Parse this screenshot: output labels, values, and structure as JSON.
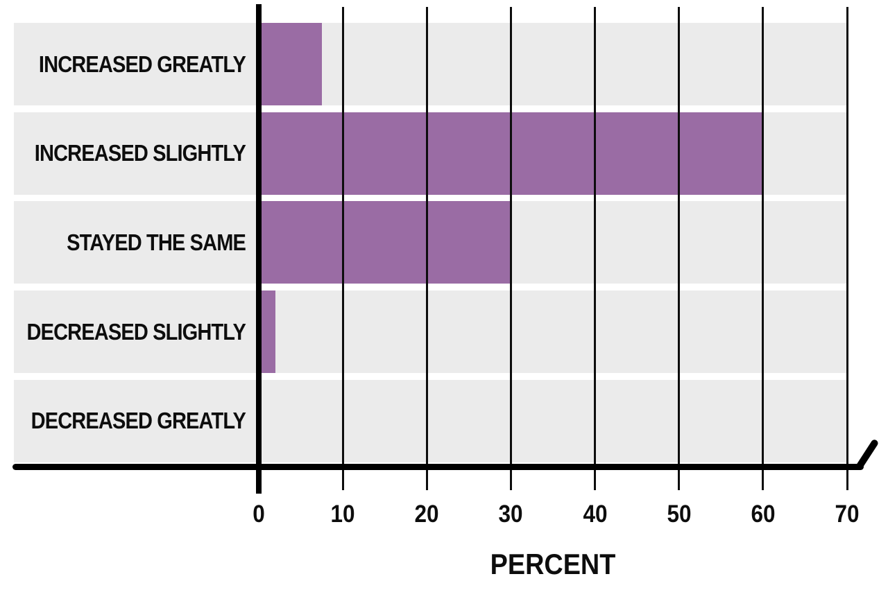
{
  "chart_data": {
    "type": "bar",
    "orientation": "horizontal",
    "title": "",
    "categories": [
      "INCREASED GREATLY",
      "INCREASED SLIGHTLY",
      "STAYED THE SAME",
      "DECREASED SLIGHTLY",
      "DECREASED GREATLY"
    ],
    "values": [
      7.5,
      60,
      30,
      2,
      0
    ],
    "xlabel": "PERCENT",
    "ylabel": "",
    "x_ticks": [
      0,
      10,
      20,
      30,
      40,
      50,
      60,
      70
    ],
    "xlim": [
      0,
      70
    ],
    "grid": "vertical gridlines every 10, drawn over bars",
    "legend_position": "none",
    "axis_break_mark": "diagonal stroke at right end of x-axis",
    "colors": {
      "bar": "#9a6ca4",
      "band": "#ebebeb",
      "axis": "#000000",
      "text": "#0d0d0d",
      "background": "#ffffff"
    }
  }
}
